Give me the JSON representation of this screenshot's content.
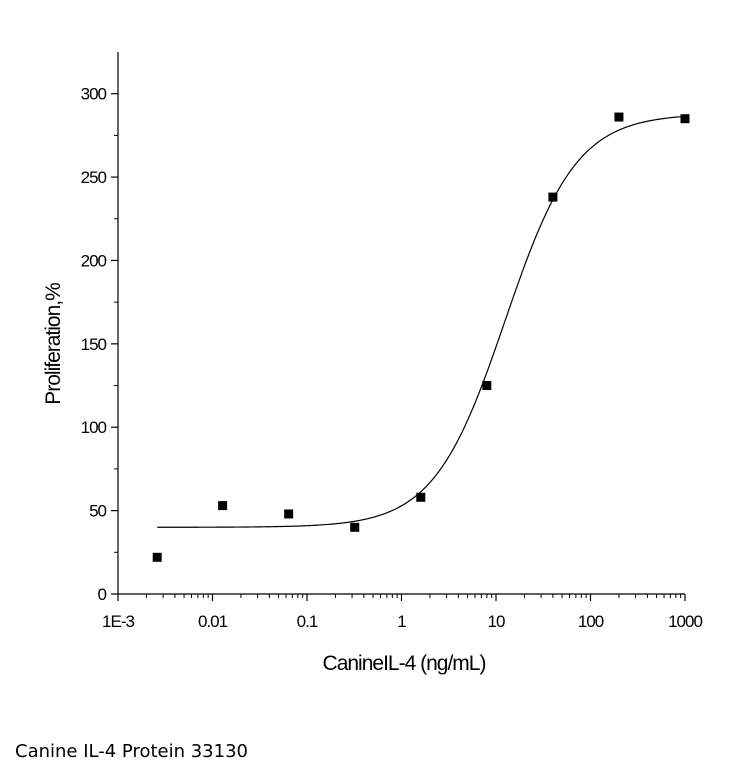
{
  "caption": "Canine IL-4 Protein 33130",
  "chart_data": {
    "type": "scatter",
    "xlabel": "CanineIL-4 (ng/mL)",
    "ylabel": "Proliferation,%",
    "x_scale": "log",
    "xlim": [
      0.001,
      1000
    ],
    "ylim": [
      0,
      325
    ],
    "x_ticks": [
      {
        "value": 0.001,
        "label": "1E-3"
      },
      {
        "value": 0.01,
        "label": "0.01"
      },
      {
        "value": 0.1,
        "label": "0.1"
      },
      {
        "value": 1,
        "label": "1"
      },
      {
        "value": 10,
        "label": "10"
      },
      {
        "value": 100,
        "label": "100"
      },
      {
        "value": 1000,
        "label": "1000"
      }
    ],
    "y_ticks": [
      {
        "value": 0,
        "label": "0"
      },
      {
        "value": 50,
        "label": "50"
      },
      {
        "value": 100,
        "label": "100"
      },
      {
        "value": 150,
        "label": "150"
      },
      {
        "value": 200,
        "label": "200"
      },
      {
        "value": 250,
        "label": "250"
      },
      {
        "value": 300,
        "label": "300"
      }
    ],
    "grid": false,
    "legend": "none",
    "series": [
      {
        "points": [
          {
            "x": 0.0026,
            "y": 22
          },
          {
            "x": 0.0128,
            "y": 53
          },
          {
            "x": 0.064,
            "y": 48
          },
          {
            "x": 0.32,
            "y": 40
          },
          {
            "x": 1.6,
            "y": 58
          },
          {
            "x": 8,
            "y": 125
          },
          {
            "x": 40,
            "y": 238
          },
          {
            "x": 200,
            "y": 286
          },
          {
            "x": 1000,
            "y": 285
          }
        ]
      }
    ],
    "fit_curve": {
      "model": "four-parameter logistic",
      "bottom": 40,
      "top": 288,
      "ec50": 12.5,
      "hill": 1.15,
      "x_range": [
        0.0026,
        1000
      ]
    },
    "marker_color": "#000000",
    "line_color": "#000000"
  }
}
